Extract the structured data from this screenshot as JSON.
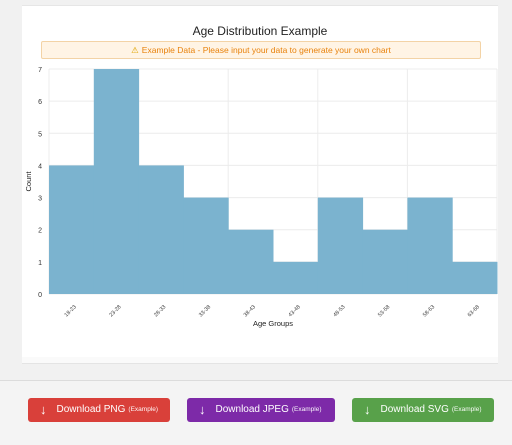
{
  "title": "Age Distribution Example",
  "notice": {
    "icon": "warning-icon",
    "text": "Example Data - Please input your data to generate your own chart"
  },
  "chart_data": {
    "type": "bar",
    "categories": [
      "18-23",
      "23-28",
      "28-33",
      "33-38",
      "38-43",
      "43-48",
      "48-53",
      "53-58",
      "58-63",
      "63-68"
    ],
    "values": [
      4,
      7,
      4,
      3,
      2,
      1,
      3,
      2,
      3,
      1
    ],
    "xlabel": "Age Groups",
    "ylabel": "Count",
    "ylim": [
      0,
      7
    ],
    "yticks": [
      "0",
      "1",
      "2",
      "3",
      "4",
      "5",
      "6",
      "7"
    ],
    "bar_color": "#7bb3cf",
    "grid": true
  },
  "buttons": {
    "png": {
      "label": "Download PNG",
      "suffix": "(Example)",
      "color": "#d9403a"
    },
    "jpeg": {
      "label": "Download JPEG",
      "suffix": "(Example)",
      "color": "#7d2aa8"
    },
    "svg": {
      "label": "Download SVG",
      "suffix": "(Example)",
      "color": "#58a14a"
    }
  }
}
